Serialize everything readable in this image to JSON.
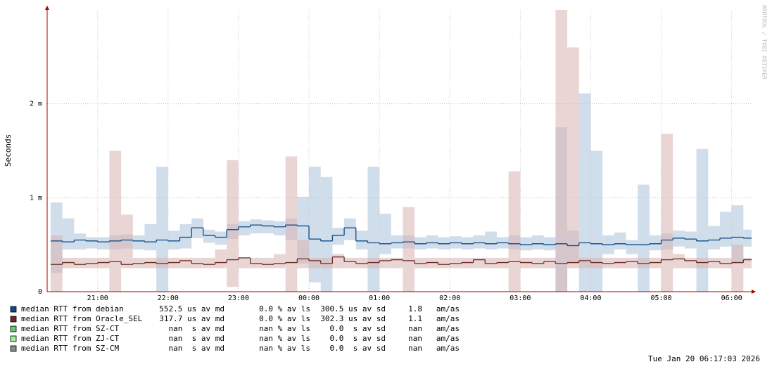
{
  "chart_data": {
    "type": "line",
    "y_label": "Seconds",
    "watermark": "RRDTOOL / TOBI OETIKER",
    "timestamp": "Tue Jan 20 06:17:03 2026",
    "x": [
      "20:20",
      "20:30",
      "20:40",
      "20:50",
      "21:00",
      "21:10",
      "21:20",
      "21:30",
      "21:40",
      "21:50",
      "22:00",
      "22:10",
      "22:20",
      "22:30",
      "22:40",
      "22:50",
      "23:00",
      "23:10",
      "23:20",
      "23:30",
      "23:40",
      "23:50",
      "00:00",
      "00:10",
      "00:20",
      "00:30",
      "00:40",
      "00:50",
      "01:00",
      "01:10",
      "01:20",
      "01:30",
      "01:40",
      "01:50",
      "02:00",
      "02:10",
      "02:20",
      "02:30",
      "02:40",
      "02:50",
      "03:00",
      "03:10",
      "03:20",
      "03:30",
      "03:40",
      "03:50",
      "04:00",
      "04:10",
      "04:20",
      "04:30",
      "04:40",
      "04:50",
      "05:00",
      "05:10",
      "05:20",
      "05:30",
      "05:40",
      "05:50",
      "06:00",
      "06:10"
    ],
    "xlim": [
      "20:17",
      "06:17"
    ],
    "xticks": [
      "21:00",
      "22:00",
      "23:00",
      "00:00",
      "01:00",
      "02:00",
      "03:00",
      "04:00",
      "05:00",
      "06:00"
    ],
    "ylim": [
      0,
      0.003
    ],
    "yticks": [
      0,
      {
        "value": 0.001,
        "label": "1 m"
      },
      {
        "value": 0.002,
        "label": "2 m"
      }
    ],
    "grid": true,
    "series": [
      {
        "name": "median RTT from debian",
        "color": "#0a4a85",
        "smoke_color": "#a9c2da",
        "stats": [
          "552.5 us av md",
          "0.0 % av ls",
          "300.5 us av sd",
          "1.8   am/as"
        ],
        "values": [
          0.00054,
          0.00053,
          0.00055,
          0.00054,
          0.00053,
          0.00054,
          0.00055,
          0.00054,
          0.00053,
          0.00055,
          0.00054,
          0.00058,
          0.00068,
          0.0006,
          0.00058,
          0.00066,
          0.00069,
          0.00071,
          0.0007,
          0.00069,
          0.00071,
          0.0007,
          0.00056,
          0.00054,
          0.0006,
          0.00068,
          0.00054,
          0.00052,
          0.00051,
          0.00052,
          0.00053,
          0.00051,
          0.00052,
          0.00051,
          0.00052,
          0.00051,
          0.00052,
          0.00051,
          0.00052,
          0.00051,
          0.0005,
          0.00051,
          0.0005,
          0.00051,
          0.00049,
          0.00052,
          0.00051,
          0.0005,
          0.00051,
          0.0005,
          0.0005,
          0.00051,
          0.00055,
          0.00057,
          0.00056,
          0.00054,
          0.00055,
          0.00057,
          0.00058,
          0.00057
        ],
        "low": [
          0.0002,
          0.00045,
          0.00045,
          0.00046,
          0.00045,
          0.00045,
          0.00046,
          0.00045,
          0.00044,
          0,
          0.00045,
          0.00046,
          0.00057,
          0.00052,
          0.0005,
          0.00056,
          0.0006,
          0.00062,
          0.00062,
          0.0006,
          0.00055,
          0.0003,
          0.0001,
          0,
          0.0005,
          0.00055,
          0.00045,
          0,
          0.0004,
          0.00046,
          0.00046,
          0.00045,
          0.00046,
          0.00045,
          0.00046,
          0.00045,
          0.00046,
          0.00045,
          0.00046,
          0.00045,
          0.00044,
          0.00045,
          0.00044,
          0,
          0.0003,
          0,
          0,
          0.0004,
          0.00045,
          0.0004,
          0,
          0.00044,
          0.00045,
          0.00048,
          0.00046,
          0,
          0.00045,
          0.00048,
          0.0003,
          0.00048
        ],
        "high": [
          0.00095,
          0.00078,
          0.00062,
          0.00058,
          0.00058,
          0.0006,
          0.00061,
          0.0006,
          0.00072,
          0.00133,
          0.00065,
          0.00072,
          0.00078,
          0.00066,
          0.00064,
          0.00072,
          0.00075,
          0.00077,
          0.00076,
          0.00075,
          0.00078,
          0.00101,
          0.00133,
          0.00122,
          0.00068,
          0.00078,
          0.00065,
          0.00133,
          0.00083,
          0.0006,
          0.0006,
          0.00058,
          0.0006,
          0.00058,
          0.00059,
          0.00058,
          0.0006,
          0.00064,
          0.00058,
          0.0006,
          0.00058,
          0.0006,
          0.00058,
          0.00175,
          0.00065,
          0.00211,
          0.0015,
          0.0006,
          0.00063,
          0.00055,
          0.00114,
          0.0006,
          0.00062,
          0.00065,
          0.00064,
          0.00152,
          0.0007,
          0.00085,
          0.00092,
          0.00066
        ]
      },
      {
        "name": "median RTT from Oracle_SEL",
        "color": "#6b2a22",
        "smoke_color": "#d9b3b3",
        "stats": [
          "317.7 us av md",
          "0.0 % av ls",
          "302.3 us av sd",
          "1.1   am/as"
        ],
        "values": [
          0.00029,
          0.00031,
          0.00029,
          0.0003,
          0.00031,
          0.00032,
          0.00029,
          0.0003,
          0.00031,
          0.0003,
          0.00031,
          0.00033,
          0.0003,
          0.00029,
          0.00031,
          0.00034,
          0.00036,
          0.0003,
          0.00029,
          0.0003,
          0.00031,
          0.00035,
          0.00033,
          0.0003,
          0.00037,
          0.00032,
          0.0003,
          0.00031,
          0.00033,
          0.00034,
          0.00033,
          0.0003,
          0.00031,
          0.00029,
          0.0003,
          0.00031,
          0.00034,
          0.0003,
          0.00031,
          0.00032,
          0.00031,
          0.0003,
          0.00032,
          0.0003,
          0.00031,
          0.00033,
          0.00031,
          0.0003,
          0.00031,
          0.00032,
          0.0003,
          0.00031,
          0.00034,
          0.00035,
          0.00033,
          0.00031,
          0.00032,
          0.0003,
          0.00031,
          0.00034
        ],
        "low": [
          0,
          0.00025,
          0.00025,
          0.00025,
          0.00025,
          0,
          0.00025,
          0.00025,
          0.00025,
          0.00025,
          0.00025,
          0.00025,
          0.00025,
          0.00025,
          0.00025,
          5e-05,
          0.00025,
          0.00025,
          0.00025,
          0.00025,
          0,
          0.00025,
          0.00025,
          0.00025,
          0.00025,
          0.00025,
          0.00025,
          0.00025,
          0.00025,
          0.00025,
          0,
          0.00025,
          0.00025,
          0.00025,
          0.00025,
          0.00025,
          0.00025,
          0.00025,
          0.00025,
          0,
          0.00025,
          0.00025,
          0.00025,
          0,
          0.00025,
          0.00025,
          0.00025,
          0.00025,
          0.00025,
          0.00025,
          0.00025,
          0.00025,
          0,
          0.00025,
          0.00025,
          0.00025,
          0.00025,
          0.00025,
          0,
          0.00025
        ],
        "high": [
          0.0006,
          0.00036,
          0.00036,
          0.00036,
          0.00036,
          0.0015,
          0.00082,
          0.00036,
          0.00036,
          0.00036,
          0.00036,
          0.00036,
          0.00036,
          0.00036,
          0.00045,
          0.0014,
          0.00036,
          0.00036,
          0.00036,
          0.0004,
          0.00144,
          0.00055,
          0.00036,
          0.00036,
          0.0004,
          0.00036,
          0.00036,
          0.00036,
          0.00036,
          0.00036,
          0.0009,
          0.00036,
          0.00036,
          0.00036,
          0.00036,
          0.00036,
          0.00036,
          0.00036,
          0.00036,
          0.00128,
          0.00036,
          0.00036,
          0.00036,
          0.003,
          0.0026,
          0.00036,
          0.00036,
          0.00036,
          0.00036,
          0.00036,
          0.00036,
          0.00036,
          0.00168,
          0.0004,
          0.00036,
          0.00036,
          0.00036,
          0.00036,
          0.0005,
          0.00036
        ]
      }
    ],
    "other_legend": [
      {
        "name": "median RTT from SZ-CT",
        "color": "#6cc46c",
        "stats": [
          "nan  s av md",
          "nan % av ls",
          "0.0  s av sd",
          "nan   am/as"
        ]
      },
      {
        "name": "median RTT from ZJ-CT",
        "color": "#9af09a",
        "stats": [
          "nan  s av md",
          "nan % av ls",
          "0.0  s av sd",
          "nan   am/as"
        ]
      },
      {
        "name": "median RTT from SZ-CM",
        "color": "#888888",
        "stats": [
          "nan  s av md",
          "nan % av ls",
          "0.0  s av sd",
          "nan   am/as"
        ]
      }
    ]
  }
}
